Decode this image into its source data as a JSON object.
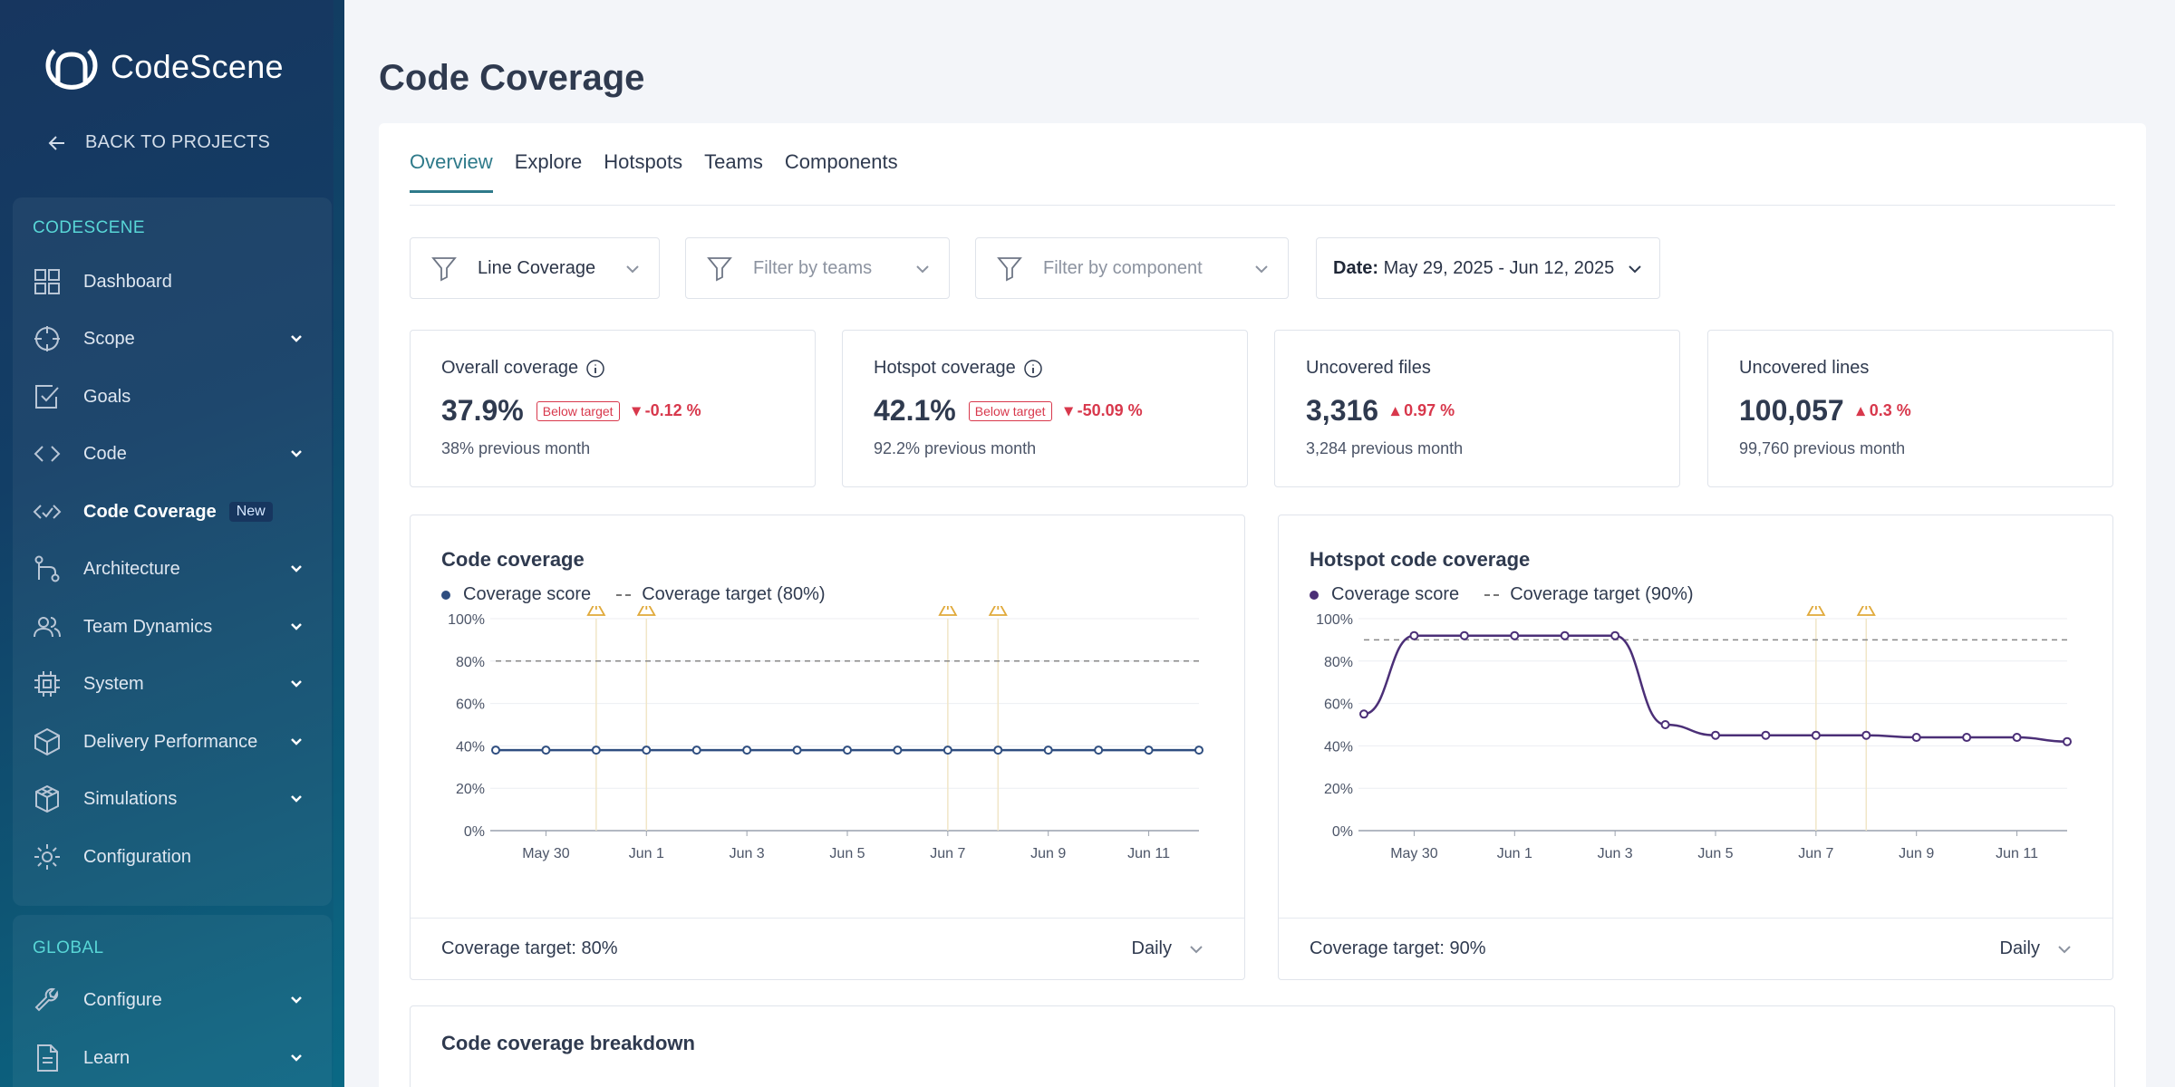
{
  "app": {
    "logo_text": "CodeScene",
    "back_label": "BACK TO PROJECTS"
  },
  "sidebar": {
    "section1": "CODESCENE",
    "items": [
      {
        "label": "Dashboard",
        "icon": "grid-icon"
      },
      {
        "label": "Scope",
        "icon": "scope-icon",
        "expandable": true
      },
      {
        "label": "Goals",
        "icon": "check-square-icon"
      },
      {
        "label": "Code",
        "icon": "code-icon",
        "expandable": true
      },
      {
        "label": "Code Coverage",
        "icon": "code-check-icon",
        "badge": "New",
        "active": true
      },
      {
        "label": "Architecture",
        "icon": "architecture-icon",
        "expandable": true
      },
      {
        "label": "Team Dynamics",
        "icon": "team-icon",
        "expandable": true
      },
      {
        "label": "System",
        "icon": "cpu-icon",
        "expandable": true
      },
      {
        "label": "Delivery Performance",
        "icon": "box-icon",
        "expandable": true
      },
      {
        "label": "Simulations",
        "icon": "cubes-icon",
        "expandable": true
      },
      {
        "label": "Configuration",
        "icon": "gear-icon"
      }
    ],
    "section2": "GLOBAL",
    "global_items": [
      {
        "label": "Configure",
        "icon": "wrench-icon",
        "expandable": true
      },
      {
        "label": "Learn",
        "icon": "document-icon",
        "expandable": true
      }
    ]
  },
  "page": {
    "title": "Code Coverage"
  },
  "tabs": [
    "Overview",
    "Explore",
    "Hotspots",
    "Teams",
    "Components"
  ],
  "filters": {
    "metric": "Line Coverage",
    "teams_placeholder": "Filter by teams",
    "component_placeholder": "Filter by component",
    "date_label": "Date:",
    "date_value": "May 29, 2025 - Jun 12, 2025"
  },
  "kpis": [
    {
      "title": "Overall coverage",
      "value": "37.9%",
      "badge": "Below target",
      "delta": "-0.12 %",
      "direction": "down",
      "prev": "38% previous month",
      "info": true
    },
    {
      "title": "Hotspot coverage",
      "value": "42.1%",
      "badge": "Below target",
      "delta": "-50.09 %",
      "direction": "down",
      "prev": "92.2% previous month",
      "info": true
    },
    {
      "title": "Uncovered files",
      "value": "3,316",
      "badge": "",
      "delta": "0.97 %",
      "direction": "up",
      "prev": "3,284 previous month",
      "info": false
    },
    {
      "title": "Uncovered lines",
      "value": "100,057",
      "badge": "",
      "delta": "0.3 %",
      "direction": "up",
      "prev": "99,760 previous month",
      "info": false
    }
  ],
  "colors": {
    "accent": "#2e7a8a",
    "negative": "#d8384c",
    "warning": "#e0a93a",
    "series1": "#2f4e80",
    "series2": "#4b2f77"
  },
  "charts": [
    {
      "title": "Code coverage",
      "legend_score": "Coverage score",
      "legend_target": "Coverage target (80%)",
      "footer_label": "Coverage target: 80%",
      "footer_select": "Daily"
    },
    {
      "title": "Hotspot code coverage",
      "legend_score": "Coverage score",
      "legend_target": "Coverage target (90%)",
      "footer_label": "Coverage target: 90%",
      "footer_select": "Daily"
    }
  ],
  "chart_data": [
    {
      "type": "line",
      "title": "Code coverage",
      "x": [
        "May 29",
        "May 30",
        "May 31",
        "Jun 1",
        "Jun 2",
        "Jun 3",
        "Jun 4",
        "Jun 5",
        "Jun 6",
        "Jun 7",
        "Jun 8",
        "Jun 9",
        "Jun 10",
        "Jun 11",
        "Jun 12"
      ],
      "x_tick_labels": [
        "May 30",
        "Jun 1",
        "Jun 3",
        "Jun 5",
        "Jun 7",
        "Jun 9",
        "Jun 11"
      ],
      "y_tick_labels": [
        "0%",
        "20%",
        "40%",
        "60%",
        "80%",
        "100%"
      ],
      "ylim": [
        0,
        100
      ],
      "series": [
        {
          "name": "Coverage score",
          "values": [
            38,
            38,
            38,
            38,
            38,
            38,
            38,
            38,
            38,
            38,
            38,
            38,
            38,
            38,
            38
          ]
        }
      ],
      "target": 80,
      "warnings_at": [
        "May 31",
        "Jun 1",
        "Jun 7",
        "Jun 8"
      ]
    },
    {
      "type": "line",
      "title": "Hotspot code coverage",
      "x": [
        "May 29",
        "May 30",
        "May 31",
        "Jun 1",
        "Jun 2",
        "Jun 3",
        "Jun 4",
        "Jun 5",
        "Jun 6",
        "Jun 7",
        "Jun 8",
        "Jun 9",
        "Jun 10",
        "Jun 11",
        "Jun 12"
      ],
      "x_tick_labels": [
        "May 30",
        "Jun 1",
        "Jun 3",
        "Jun 5",
        "Jun 7",
        "Jun 9",
        "Jun 11"
      ],
      "y_tick_labels": [
        "0%",
        "20%",
        "40%",
        "60%",
        "80%",
        "100%"
      ],
      "ylim": [
        0,
        100
      ],
      "series": [
        {
          "name": "Coverage score",
          "values": [
            55,
            92,
            92,
            92,
            92,
            92,
            50,
            45,
            45,
            45,
            45,
            44,
            44,
            44,
            42
          ]
        }
      ],
      "target": 90,
      "warnings_at": [
        "Jun 7",
        "Jun 8"
      ]
    }
  ],
  "breakdown": {
    "title": "Code coverage breakdown"
  }
}
